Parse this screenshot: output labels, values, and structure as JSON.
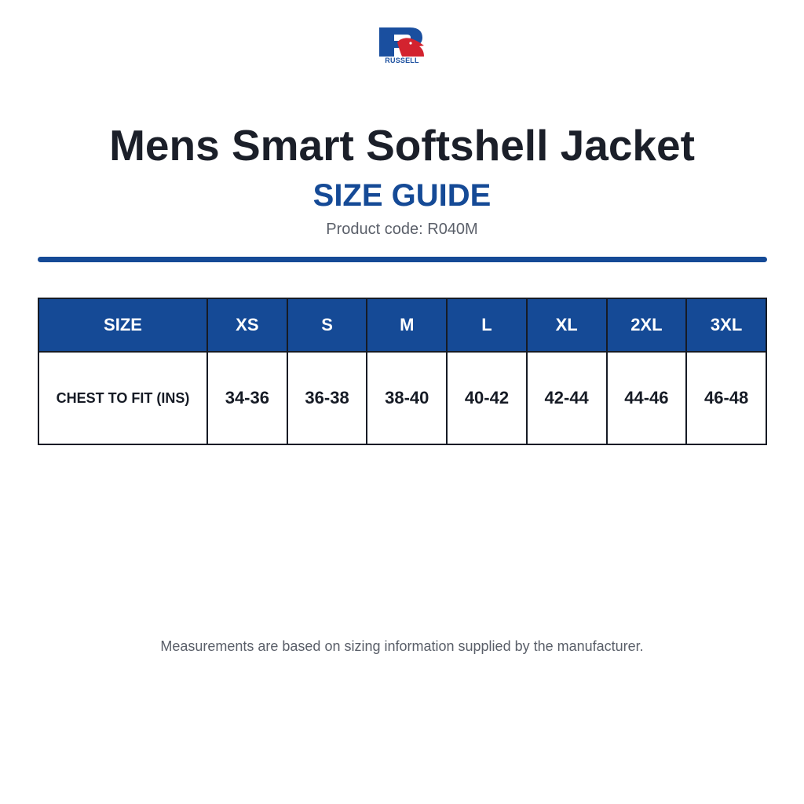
{
  "brand": {
    "logo_text": "RUSSELL",
    "colors": {
      "blue": "#1a4f9f",
      "red": "#d3232f"
    }
  },
  "header": {
    "title": "Mens Smart Softshell Jacket",
    "subtitle": "SIZE GUIDE",
    "product_code": "Product code: R040M"
  },
  "table": {
    "header_label": "SIZE",
    "sizes": [
      "XS",
      "S",
      "M",
      "L",
      "XL",
      "2XL",
      "3XL"
    ],
    "rows": [
      {
        "label": "CHEST TO FIT (INS)",
        "values": [
          "34-36",
          "36-38",
          "38-40",
          "40-42",
          "42-44",
          "44-46",
          "46-48"
        ]
      }
    ]
  },
  "footnote": "Measurements are based on sizing information supplied by the manufacturer.",
  "colors": {
    "accent": "#154a96",
    "text_dark": "#1b1f29",
    "text_muted": "#5a5f69",
    "border": "#161b25"
  }
}
